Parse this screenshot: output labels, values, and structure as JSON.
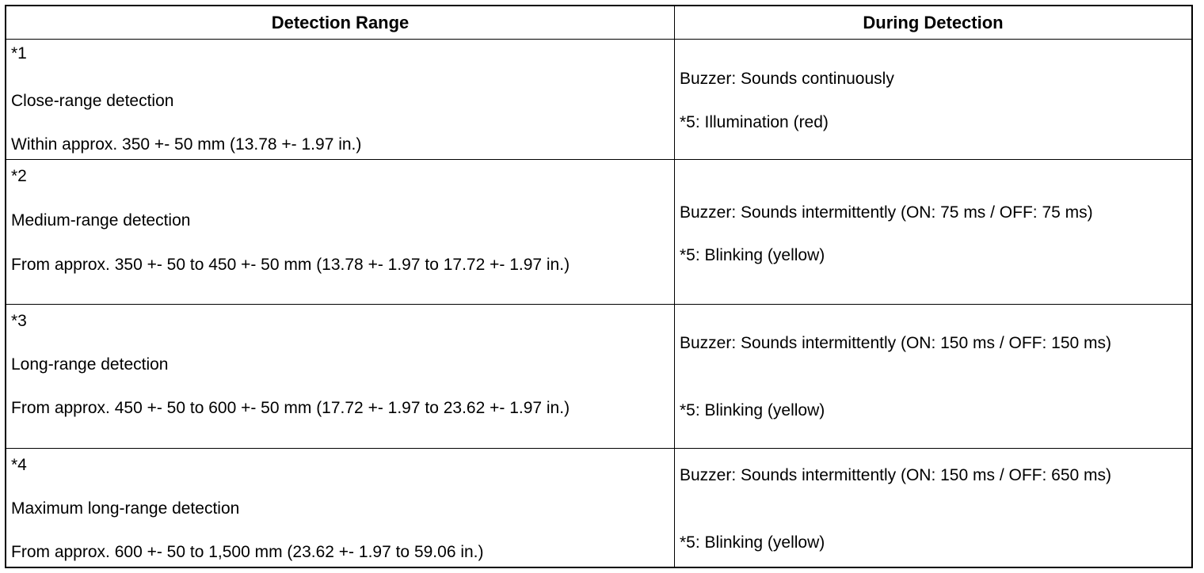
{
  "headers": {
    "detection_range": "Detection Range",
    "during_detection": "During Detection"
  },
  "rows": [
    {
      "marker": "*1",
      "range_name": "Close-range detection",
      "range_value": "Within approx. 350 +- 50 mm (13.78 +- 1.97 in.)",
      "buzzer": "Buzzer: Sounds continuously",
      "indicator": "*5: Illumination (red)"
    },
    {
      "marker": "*2",
      "range_name": "Medium-range detection",
      "range_value": "From approx. 350 +- 50 to 450 +- 50 mm (13.78 +- 1.97 to 17.72 +- 1.97 in.)",
      "buzzer": "Buzzer: Sounds intermittently (ON: 75 ms / OFF: 75 ms)",
      "indicator": "*5: Blinking (yellow)"
    },
    {
      "marker": "*3",
      "range_name": "Long-range detection",
      "range_value": "From approx. 450 +- 50 to 600 +- 50 mm (17.72 +- 1.97 to 23.62 +- 1.97 in.)",
      "buzzer": "Buzzer: Sounds intermittently (ON: 150 ms / OFF: 150 ms)",
      "indicator": "*5: Blinking (yellow)"
    },
    {
      "marker": "*4",
      "range_name": "Maximum long-range detection",
      "range_value": "From approx. 600 +- 50 to 1,500 mm (23.62 +- 1.97 to 59.06 in.)",
      "buzzer": "Buzzer: Sounds intermittently (ON: 150 ms / OFF: 650 ms)",
      "indicator": "*5: Blinking (yellow)"
    }
  ]
}
